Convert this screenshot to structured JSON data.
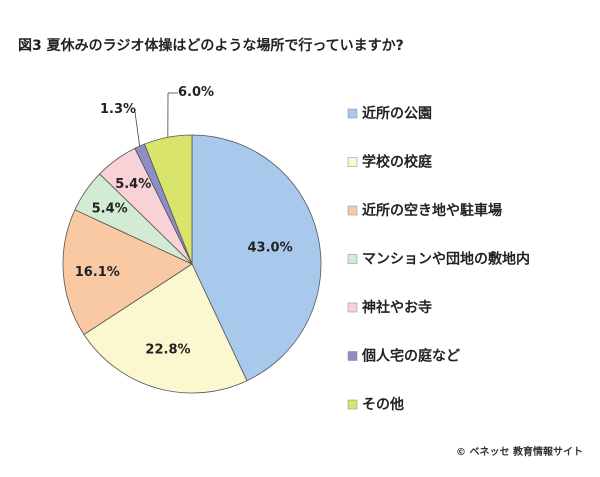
{
  "chart_data": {
    "type": "pie",
    "title": "図3  夏休みのラジオ体操はどのような場所で行っていますか?",
    "categories": [
      "近所の公園",
      "学校の校庭",
      "近所の空き地や駐車場",
      "マンションや団地の敷地内",
      "神社やお寺",
      "個人宅の庭など",
      "その他"
    ],
    "values": [
      43.0,
      22.8,
      16.1,
      5.4,
      5.4,
      1.3,
      6.0
    ],
    "labels": [
      "43.0%",
      "22.8%",
      "16.1%",
      "5.4%",
      "5.4%",
      "1.3%",
      "6.0%"
    ],
    "colors": [
      "#a8c8ec",
      "#fbf8cf",
      "#f9c9a4",
      "#d3ead3",
      "#f8d2d6",
      "#8e8ec6",
      "#d8e46a"
    ],
    "legend_position": "right"
  },
  "copyright": "© ベネッセ 教育情報サイト"
}
